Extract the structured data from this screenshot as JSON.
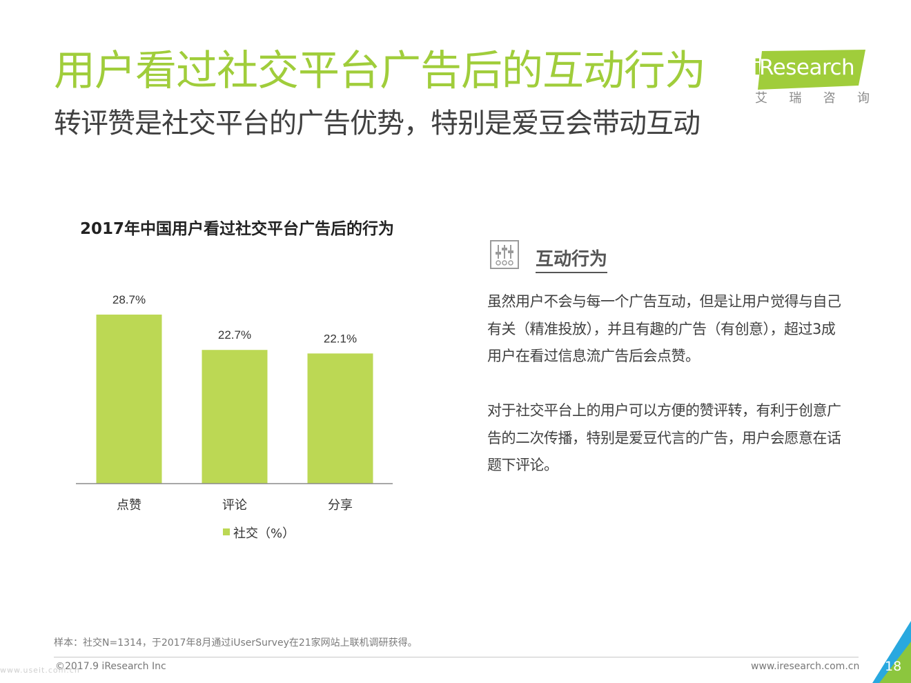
{
  "header": {
    "title": "用户看过社交平台广告后的互动行为",
    "subtitle": "转评赞是社交平台的广告优势，特别是爱豆会带动互动"
  },
  "logo": {
    "brand_i": "i",
    "brand": "Research",
    "chinese_chars": [
      "艾",
      "瑞",
      "咨",
      "询"
    ]
  },
  "chart": {
    "title": "2017年中国用户看过社交平台广告后的行为"
  },
  "chart_data": {
    "type": "bar",
    "title": "2017年中国用户看过社交平台广告后的行为",
    "categories": [
      "点赞",
      "评论",
      "分享"
    ],
    "series": [
      {
        "name": "社交（%）",
        "values": [
          28.7,
          22.7,
          22.1
        ],
        "labels": [
          "28.7%",
          "22.7%",
          "22.1%"
        ],
        "color": "#bcd854"
      }
    ],
    "xlabel": "",
    "ylabel": "",
    "ylim": [
      0,
      32
    ],
    "grid": false,
    "legend_position": "bottom"
  },
  "section": {
    "icon": "sliders-icon",
    "heading": "互动行为",
    "paragraph1": "虽然用户不会与每一个广告互动，但是让用户觉得与自己有关（精准投放），并且有趣的广告（有创意），超过3成用户在看过信息流广告后会点赞。",
    "paragraph2": "对于社交平台上的用户可以方便的赞评转，有利于创意广告的二次传播，特别是爱豆代言的广告，用户会愿意在话题下评论。"
  },
  "footer": {
    "note": "样本：社交N=1314，于2017年8月通过iUserSurvey在21家网站上联机调研获得。",
    "copyright": "©2017.9 iResearch Inc",
    "website": "www.iresearch.com.cn",
    "page_number": "18",
    "watermark": "www.useit.com.cn"
  },
  "colors": {
    "accent_green": "#a0cd3b",
    "bar_green": "#bcd854",
    "corner_blue": "#29a8df",
    "corner_green": "#8cc63e"
  }
}
